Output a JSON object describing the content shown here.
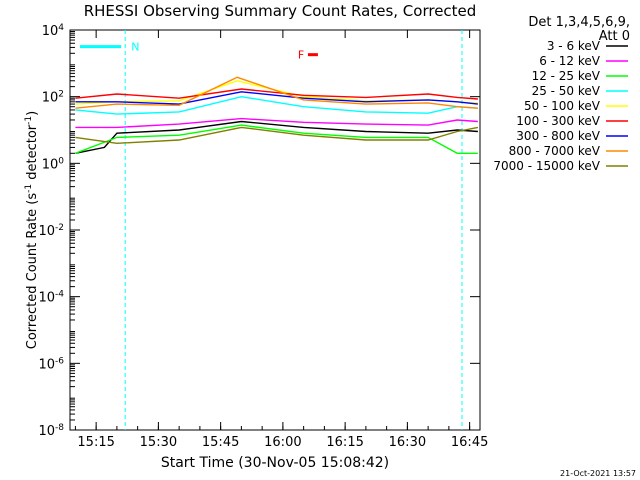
{
  "chart_data": {
    "type": "line",
    "title": "RHESSI Observing Summary Count Rates, Corrected",
    "xlabel": "Start Time (30-Nov-05 15:08:42)",
    "ylabel_main": "Corrected Count Rate (s",
    "ylabel_sup": "-1",
    "ylabel_mid": " detector",
    "ylabel_sup2": "-1",
    "ylabel_end": ")",
    "y_scale": "log",
    "ylim": [
      1e-08,
      10000.0
    ],
    "xlim": [
      "15:08:42",
      "16:47:30"
    ],
    "x_ticks": [
      "15:15",
      "15:30",
      "15:45",
      "16:00",
      "16:15",
      "16:30",
      "16:45"
    ],
    "y_ticks": [
      "10^-8",
      "10^-6",
      "10^-4",
      "10^-2",
      "10^0",
      "10^2",
      "10^4"
    ],
    "legend_title_1": "Det 1,3,4,5,6,9,",
    "legend_title_2": "Att 0",
    "legend_position": "right",
    "annotations": [
      {
        "label": "N",
        "time": "15:22",
        "color": "#00ffff",
        "kind": "night"
      },
      {
        "label": "F",
        "time": "16:07",
        "color": "#ff0000",
        "kind": "flare"
      }
    ],
    "footer_date": "21-Oct-2021 13:57",
    "series": [
      {
        "name": "3 - 6 keV",
        "color": "#000000",
        "x": [
          "15:10",
          "15:17",
          "15:20",
          "15:35",
          "15:50",
          "16:05",
          "16:20",
          "16:35",
          "16:42",
          "16:47"
        ],
        "values": [
          2,
          3,
          8,
          10,
          18,
          12,
          9,
          8,
          10,
          9
        ]
      },
      {
        "name": "6 - 12 keV",
        "color": "#ff00ff",
        "x": [
          "15:10",
          "15:20",
          "15:35",
          "15:50",
          "16:05",
          "16:20",
          "16:35",
          "16:42",
          "16:47"
        ],
        "values": [
          12,
          12,
          15,
          22,
          17,
          15,
          14,
          20,
          18
        ]
      },
      {
        "name": "12 - 25 keV",
        "color": "#00ff00",
        "x": [
          "15:10",
          "15:20",
          "15:35",
          "15:50",
          "16:05",
          "16:20",
          "16:35",
          "16:42",
          "16:47"
        ],
        "values": [
          2,
          6,
          7,
          14,
          8,
          6,
          6,
          2,
          2
        ]
      },
      {
        "name": "25 - 50 keV",
        "color": "#00ffff",
        "x": [
          "15:10",
          "15:20",
          "15:35",
          "15:50",
          "16:05",
          "16:20",
          "16:35",
          "16:42",
          "16:47"
        ],
        "values": [
          40,
          30,
          35,
          100,
          50,
          35,
          32,
          50,
          45
        ]
      },
      {
        "name": "50 - 100 keV",
        "color": "#ffff00",
        "x": [
          "15:10",
          "15:20",
          "15:35",
          "15:49",
          "16:05",
          "16:20",
          "16:35",
          "16:42",
          "16:47"
        ],
        "values": [
          60,
          70,
          75,
          300,
          100,
          75,
          80,
          70,
          65
        ]
      },
      {
        "name": "100 - 300 keV",
        "color": "#ff0000",
        "x": [
          "15:10",
          "15:20",
          "15:35",
          "15:50",
          "16:05",
          "16:20",
          "16:35",
          "16:42",
          "16:47"
        ],
        "values": [
          90,
          120,
          90,
          170,
          110,
          95,
          120,
          95,
          85
        ]
      },
      {
        "name": "300 - 800 keV",
        "color": "#0000ff",
        "x": [
          "15:10",
          "15:20",
          "15:35",
          "15:50",
          "16:05",
          "16:20",
          "16:35",
          "16:42",
          "16:47"
        ],
        "values": [
          70,
          70,
          60,
          140,
          90,
          70,
          80,
          70,
          60
        ]
      },
      {
        "name": "800 - 7000 keV",
        "color": "#ff8800",
        "x": [
          "15:10",
          "15:20",
          "15:35",
          "15:49",
          "16:05",
          "16:20",
          "16:35",
          "16:42",
          "16:47"
        ],
        "values": [
          45,
          60,
          55,
          380,
          80,
          60,
          65,
          50,
          45
        ]
      },
      {
        "name": "7000 - 15000 keV",
        "color": "#808000",
        "x": [
          "15:10",
          "15:20",
          "15:35",
          "15:50",
          "16:05",
          "16:20",
          "16:35",
          "16:42",
          "16:47"
        ],
        "values": [
          6,
          4,
          5,
          12,
          7,
          5,
          5,
          9,
          12
        ]
      }
    ]
  }
}
